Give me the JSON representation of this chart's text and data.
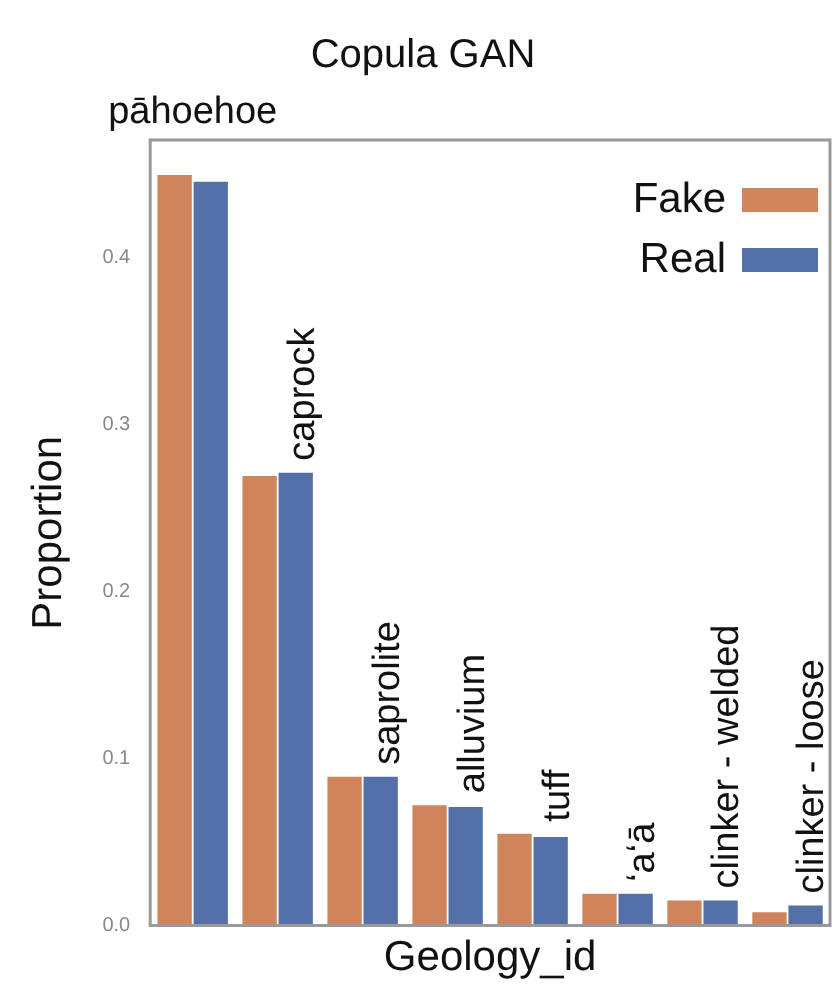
{
  "chart_data": {
    "type": "bar",
    "title": "Copula GAN",
    "xlabel": "Geology_id",
    "ylabel": "Proportion",
    "categories": [
      "pāhoehoe",
      "caprock",
      "saprolite",
      "alluvium",
      "tuff",
      "ʻaʻā",
      "clinker - welded",
      "clinker - loose"
    ],
    "series": [
      {
        "name": "Fake",
        "color": "#d0845c",
        "values": [
          0.449,
          0.269,
          0.089,
          0.072,
          0.055,
          0.019,
          0.015,
          0.008
        ]
      },
      {
        "name": "Real",
        "color": "#5470a8",
        "values": [
          0.445,
          0.271,
          0.089,
          0.071,
          0.053,
          0.019,
          0.015,
          0.012
        ]
      }
    ],
    "ylim": [
      0,
      0.47
    ],
    "yticks": [
      {
        "value": 0,
        "label": "0.0"
      },
      {
        "value": 0.1,
        "label": "0.1"
      },
      {
        "value": 0.2,
        "label": "0.2"
      },
      {
        "value": 0.3,
        "label": "0.3"
      },
      {
        "value": 0.4,
        "label": "0.4"
      }
    ],
    "grid": false,
    "legend": "top right"
  }
}
